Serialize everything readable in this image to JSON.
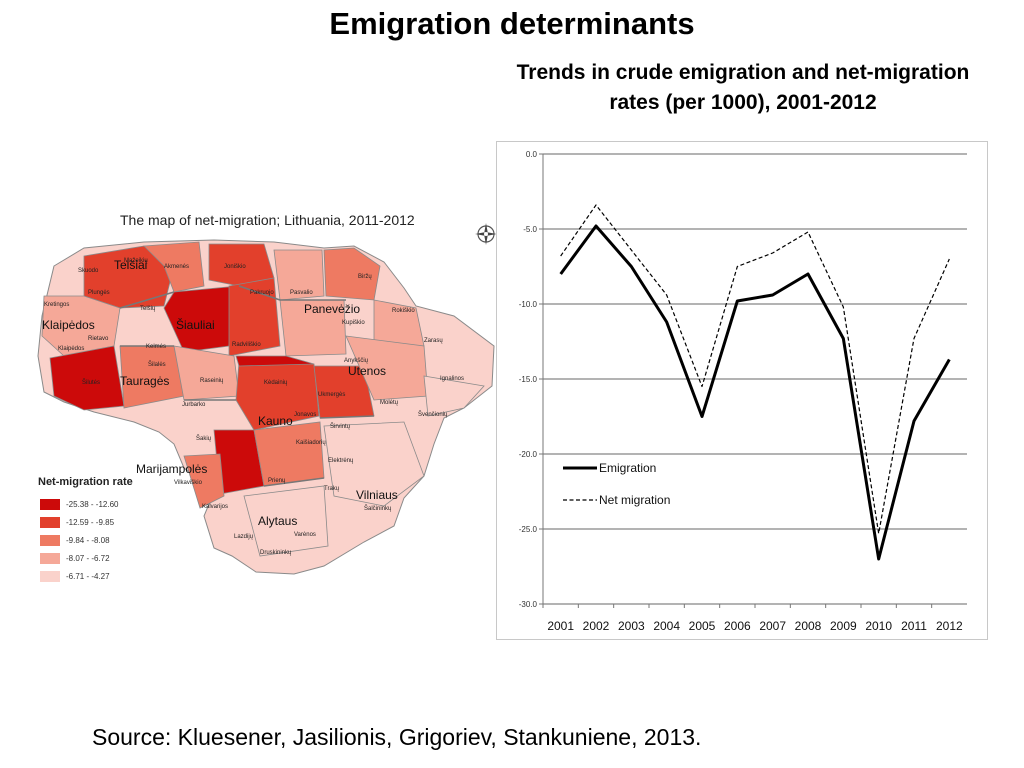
{
  "slide": {
    "title": "Emigration determinants",
    "chart_heading": "Trends in crude emigration and net-migration rates (per 1000), 2001-2012",
    "source": "Source: Kluesener, Jasilionis, Grigoriev, Stankuniene, 2013."
  },
  "map": {
    "title": "The map of net-migration; Lithuania, 2011-2012",
    "legend_title": "Net-migration rate",
    "legend": [
      {
        "label": "-25.38 - -12.60",
        "color": "#cc0a0a"
      },
      {
        "label": "-12.59 - -9.85",
        "color": "#e2402c"
      },
      {
        "label": "-9.84 - -8.08",
        "color": "#ee7a62"
      },
      {
        "label": "-8.07 - -6.72",
        "color": "#f5a898"
      },
      {
        "label": "-6.71 - -4.27",
        "color": "#fad2cb"
      }
    ],
    "region_labels": [
      "Telšiai",
      "Klaipėdos",
      "Šiauliai",
      "Panevėžio",
      "Utenos",
      "Tauragės",
      "Kauno",
      "Marijampolės",
      "Vilniaus",
      "Alytaus"
    ],
    "district_labels": [
      "Skuodo",
      "Mažeikių",
      "Akmenės",
      "Joniškio",
      "Biržų",
      "Plungės",
      "Telšių",
      "Pakruojo",
      "Pasvalio",
      "Rokiškio",
      "Kretingos",
      "Rietavo",
      "Kelmės",
      "Radviliškio",
      "Kupiškio",
      "Zarasų",
      "Klaipėdos",
      "Šilutės",
      "Šilalės",
      "Raseinių",
      "Kėdainių",
      "Anykščių",
      "Ignalinos",
      "Jurbarko",
      "Jonavos",
      "Ukmergės",
      "Molėtų",
      "Švenčionių",
      "Širvintų",
      "Šakių",
      "Kaišiadorių",
      "Elektrėnų",
      "Prienų",
      "Trakų",
      "Vilkaviškio",
      "Kalvarijos",
      "Lazdijų",
      "Varėnos",
      "Druskininkų",
      "Šalčininkų"
    ]
  },
  "chart_data": {
    "type": "line",
    "title": "Trends in crude emigration and net-migration rates (per 1000), 2001-2012",
    "categories": [
      "2001",
      "2002",
      "2003",
      "2004",
      "2005",
      "2006",
      "2007",
      "2008",
      "2009",
      "2010",
      "2011",
      "2012"
    ],
    "series": [
      {
        "name": "Emigration",
        "values": [
          -8.0,
          -4.8,
          -7.5,
          -11.2,
          -17.5,
          -9.8,
          -9.4,
          -8.0,
          -12.3,
          -27.0,
          -17.8,
          -13.7
        ],
        "style": "solid-thick",
        "color": "#000000"
      },
      {
        "name": "Net migration",
        "values": [
          -6.8,
          -3.4,
          -6.4,
          -9.4,
          -15.5,
          -7.5,
          -6.6,
          -5.2,
          -10.2,
          -25.3,
          -12.3,
          -7.0
        ],
        "style": "dashed",
        "color": "#000000"
      }
    ],
    "y_ticks": [
      "0.0",
      "-5.0",
      "-10.0",
      "-15.0",
      "-20.0",
      "-25.0",
      "-30.0"
    ],
    "ylim": [
      -30,
      0
    ],
    "grid": "horizontal",
    "legend_position": "lower-left",
    "xlabel": "",
    "ylabel": ""
  }
}
